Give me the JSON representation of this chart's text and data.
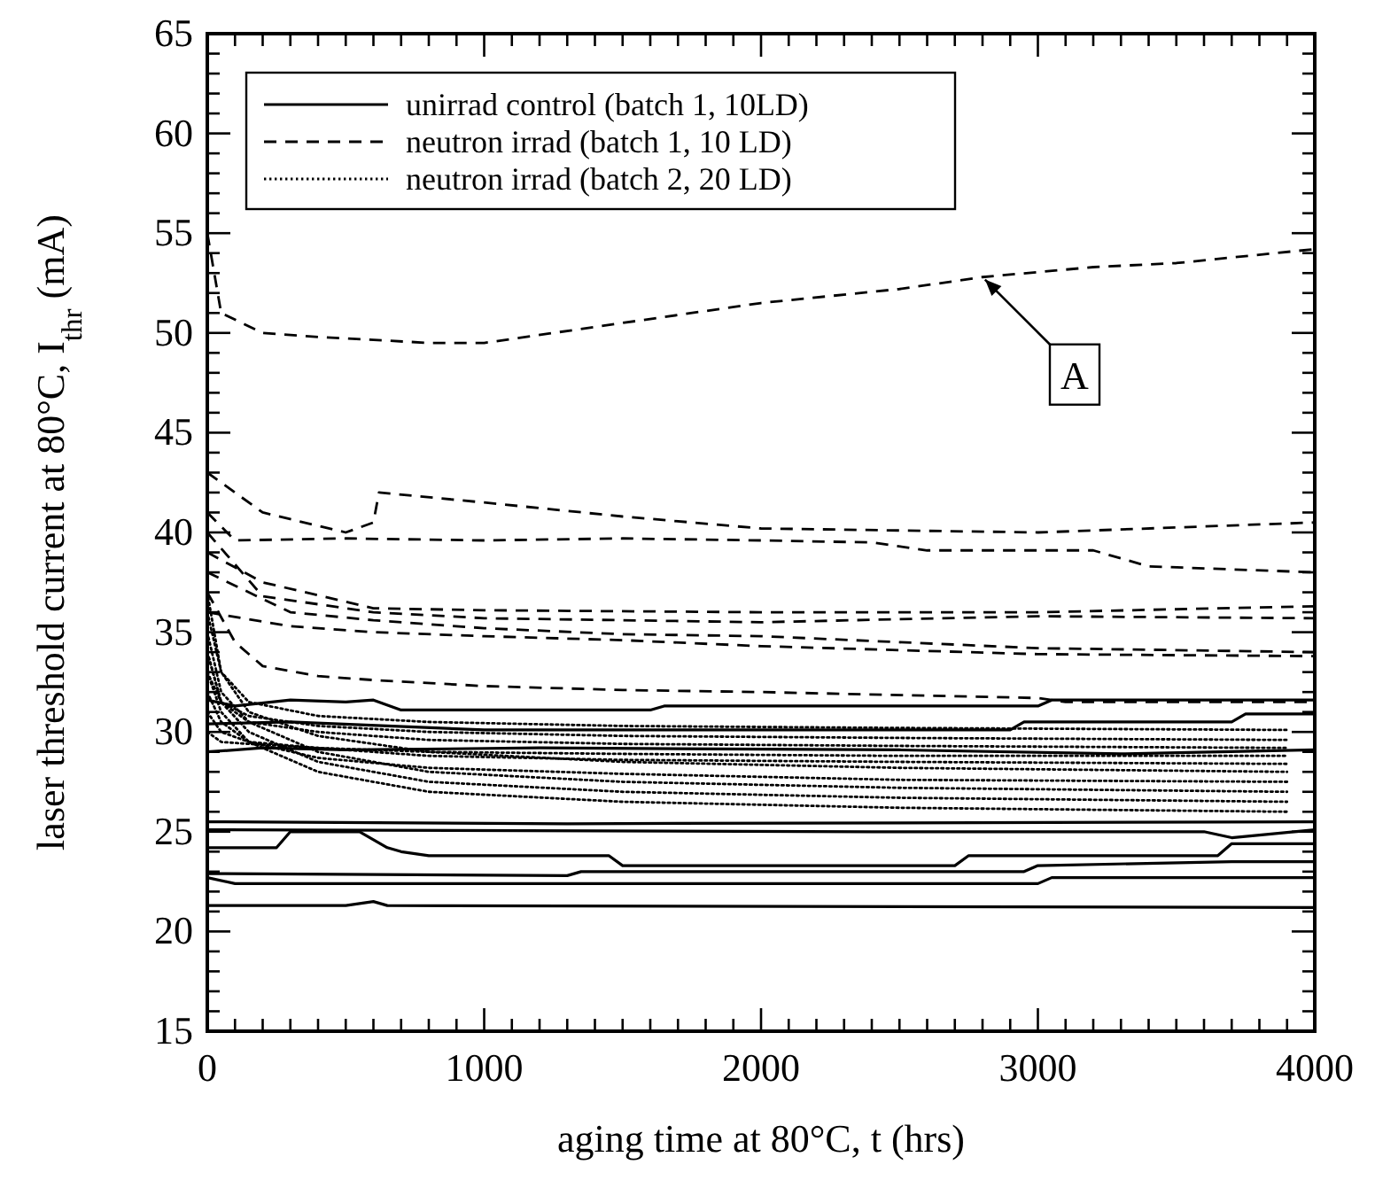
{
  "chart_data": {
    "type": "line",
    "xlabel": "aging time at 80°C, t (hrs)",
    "ylabel": "laser threshold current at 80°C, I$_{thr}$ (mA)",
    "xlim": [
      0,
      4000
    ],
    "ylim": [
      15,
      65
    ],
    "xticks": [
      0,
      {
        "value": 100,
        "label": null
      },
      {
        "value": 200,
        "label": null
      },
      {
        "value": 300,
        "label": null
      },
      {
        "value": 400,
        "label": null
      },
      {
        "value": 500,
        "label": null
      },
      {
        "value": 600,
        "label": null
      },
      {
        "value": 700,
        "label": null
      },
      {
        "value": 800,
        "label": null
      },
      {
        "value": 900,
        "label": null
      },
      1000,
      {
        "value": 1100,
        "label": null
      },
      {
        "value": 1200,
        "label": null
      },
      {
        "value": 1300,
        "label": null
      },
      {
        "value": 1400,
        "label": null
      },
      {
        "value": 1500,
        "label": null
      },
      {
        "value": 1600,
        "label": null
      },
      {
        "value": 1700,
        "label": null
      },
      {
        "value": 1800,
        "label": null
      },
      {
        "value": 1900,
        "label": null
      },
      2000,
      {
        "value": 2100,
        "label": null
      },
      {
        "value": 2200,
        "label": null
      },
      {
        "value": 2300,
        "label": null
      },
      {
        "value": 2400,
        "label": null
      },
      {
        "value": 2500,
        "label": null
      },
      {
        "value": 2600,
        "label": null
      },
      {
        "value": 2700,
        "label": null
      },
      {
        "value": 2800,
        "label": null
      },
      {
        "value": 2900,
        "label": null
      },
      3000,
      {
        "value": 3100,
        "label": null
      },
      {
        "value": 3200,
        "label": null
      },
      {
        "value": 3300,
        "label": null
      },
      {
        "value": 3400,
        "label": null
      },
      {
        "value": 3500,
        "label": null
      },
      {
        "value": 3600,
        "label": null
      },
      {
        "value": 3700,
        "label": null
      },
      {
        "value": 3800,
        "label": null
      },
      {
        "value": 3900,
        "label": null
      },
      4000
    ],
    "yticks": [
      15,
      {
        "value": 16,
        "label": null
      },
      {
        "value": 17,
        "label": null
      },
      {
        "value": 18,
        "label": null
      },
      {
        "value": 19,
        "label": null
      },
      20,
      {
        "value": 21,
        "label": null
      },
      {
        "value": 22,
        "label": null
      },
      {
        "value": 23,
        "label": null
      },
      {
        "value": 24,
        "label": null
      },
      25,
      {
        "value": 26,
        "label": null
      },
      {
        "value": 27,
        "label": null
      },
      {
        "value": 28,
        "label": null
      },
      {
        "value": 29,
        "label": null
      },
      30,
      {
        "value": 31,
        "label": null
      },
      {
        "value": 32,
        "label": null
      },
      {
        "value": 33,
        "label": null
      },
      {
        "value": 34,
        "label": null
      },
      35,
      {
        "value": 36,
        "label": null
      },
      {
        "value": 37,
        "label": null
      },
      {
        "value": 38,
        "label": null
      },
      {
        "value": 39,
        "label": null
      },
      40,
      {
        "value": 41,
        "label": null
      },
      {
        "value": 42,
        "label": null
      },
      {
        "value": 43,
        "label": null
      },
      {
        "value": 44,
        "label": null
      },
      45,
      {
        "value": 46,
        "label": null
      },
      {
        "value": 47,
        "label": null
      },
      {
        "value": 48,
        "label": null
      },
      {
        "value": 49,
        "label": null
      },
      50,
      {
        "value": 51,
        "label": null
      },
      {
        "value": 52,
        "label": null
      },
      {
        "value": 53,
        "label": null
      },
      {
        "value": 54,
        "label": null
      },
      55,
      {
        "value": 56,
        "label": null
      },
      {
        "value": 57,
        "label": null
      },
      {
        "value": 58,
        "label": null
      },
      {
        "value": 59,
        "label": null
      },
      60,
      {
        "value": 61,
        "label": null
      },
      {
        "value": 62,
        "label": null
      },
      {
        "value": 63,
        "label": null
      },
      {
        "value": 64,
        "label": null
      },
      65
    ],
    "grid": false,
    "legend": "top left",
    "marker": "none",
    "annotations": [
      {
        "text": "A",
        "x": 2800,
        "y": 52.8
      }
    ],
    "series": [
      {
        "name": "unirrad control (batch 1, 10LD)",
        "color": "#000000",
        "line_style": "solid",
        "x": [
          0,
          100,
          300,
          500,
          600,
          700,
          1600,
          1650,
          3000,
          3050,
          4000
        ],
        "values": [
          31.6,
          31.3,
          31.6,
          31.5,
          31.6,
          31.1,
          31.1,
          31.3,
          31.3,
          31.6,
          31.6
        ]
      },
      {
        "color": "#000000",
        "line_style": "solid",
        "x": [
          0,
          300,
          1000,
          2900,
          2950,
          3700,
          3750,
          4000
        ],
        "values": [
          30.4,
          30.5,
          30.1,
          30.1,
          30.5,
          30.5,
          30.9,
          30.9
        ]
      },
      {
        "color": "#000000",
        "line_style": "solid",
        "x": [
          0,
          200,
          500,
          1200,
          2500,
          3300,
          4000
        ],
        "values": [
          29.0,
          29.2,
          29.1,
          29.2,
          29.1,
          28.9,
          29.1
        ]
      },
      {
        "color": "#000000",
        "line_style": "solid",
        "x": [
          0,
          1300,
          4000
        ],
        "values": [
          25.5,
          25.4,
          25.5
        ]
      },
      {
        "color": "#000000",
        "line_style": "solid",
        "x": [
          0,
          2400,
          3600,
          3700,
          4000
        ],
        "values": [
          25.1,
          25.0,
          25.0,
          24.7,
          25.1
        ]
      },
      {
        "color": "#000000",
        "line_style": "solid",
        "x": [
          0,
          250,
          300,
          550,
          650,
          700,
          800,
          1450,
          1500,
          2700,
          2750,
          3650,
          3700,
          4000
        ],
        "values": [
          24.2,
          24.2,
          25.0,
          25.0,
          24.2,
          24.0,
          23.8,
          23.8,
          23.3,
          23.3,
          23.8,
          23.8,
          24.4,
          24.4
        ]
      },
      {
        "color": "#000000",
        "line_style": "solid",
        "x": [
          0,
          1300,
          1350,
          2950,
          3000,
          3700,
          4000
        ],
        "values": [
          22.9,
          22.8,
          23.0,
          23.0,
          23.3,
          23.5,
          23.5
        ]
      },
      {
        "color": "#000000",
        "line_style": "solid",
        "x": [
          0,
          100,
          3000,
          3050,
          4000
        ],
        "values": [
          22.7,
          22.4,
          22.4,
          22.7,
          22.7
        ]
      },
      {
        "color": "#000000",
        "line_style": "solid",
        "x": [
          0,
          500,
          600,
          650,
          4000
        ],
        "values": [
          21.3,
          21.3,
          21.5,
          21.3,
          21.2
        ]
      },
      {
        "name": "neutron irrad (batch 1, 10 LD)",
        "color": "#000000",
        "line_style": "dashed",
        "x": [
          0,
          50,
          200,
          400,
          800,
          1000,
          1500,
          2000,
          2500,
          2800,
          3200,
          3500,
          4000
        ],
        "values": [
          55,
          51,
          50,
          49.8,
          49.5,
          49.5,
          50.5,
          51.5,
          52.2,
          52.8,
          53.3,
          53.5,
          54.2
        ]
      },
      {
        "color": "#000000",
        "line_style": "dashed",
        "x": [
          0,
          200,
          500,
          600,
          620,
          1000,
          1500,
          2000,
          3000,
          4000
        ],
        "values": [
          43,
          41,
          40,
          40.5,
          42,
          41.5,
          40.8,
          40.2,
          40.0,
          40.5
        ]
      },
      {
        "color": "#000000",
        "line_style": "dashed",
        "x": [
          0,
          100,
          500,
          1000,
          1500,
          2000,
          2400,
          2600,
          3200,
          3400,
          4000
        ],
        "values": [
          41,
          39.6,
          39.7,
          39.6,
          39.7,
          39.6,
          39.5,
          39.1,
          39.1,
          38.3,
          38.0
        ]
      },
      {
        "color": "#000000",
        "line_style": "dashed",
        "x": [
          0,
          200,
          600,
          1000,
          2000,
          3000,
          4000
        ],
        "values": [
          39,
          37.5,
          36.2,
          36.1,
          36.0,
          36.0,
          36.3
        ]
      },
      {
        "color": "#000000",
        "line_style": "dashed",
        "x": [
          0,
          200,
          600,
          1000,
          2000,
          3000,
          4000
        ],
        "values": [
          40,
          36.8,
          36.0,
          35.7,
          35.5,
          35.8,
          35.7
        ]
      },
      {
        "color": "#000000",
        "line_style": "dashed",
        "x": [
          0,
          300,
          600,
          1000,
          1500,
          2000,
          3000,
          4000
        ],
        "values": [
          38,
          36.0,
          35.6,
          35.2,
          34.9,
          34.8,
          34.2,
          34.0
        ]
      },
      {
        "color": "#000000",
        "line_style": "dashed",
        "x": [
          0,
          300,
          600,
          1000,
          1500,
          2000,
          3000,
          4000
        ],
        "values": [
          36,
          35.3,
          35.0,
          34.8,
          34.6,
          34.3,
          33.9,
          33.8
        ]
      },
      {
        "color": "#000000",
        "line_style": "dashed",
        "x": [
          0,
          100,
          200,
          400,
          600,
          1000,
          1500,
          2000,
          3000,
          3100,
          4000
        ],
        "values": [
          37,
          34.5,
          33.3,
          32.8,
          32.6,
          32.3,
          32.1,
          32.0,
          31.7,
          31.5,
          31.5
        ]
      },
      {
        "name": "neutron irrad (batch 2, 20 LD)",
        "color": "#000000",
        "line_style": "dotted",
        "x": [
          0,
          50,
          150,
          400,
          800,
          1500,
          2500,
          3900
        ],
        "values": [
          33,
          31,
          29.5,
          28,
          27,
          26.5,
          26.2,
          26.0
        ]
      },
      {
        "color": "#000000",
        "line_style": "dotted",
        "x": [
          0,
          50,
          150,
          400,
          800,
          1500,
          2500,
          3900
        ],
        "values": [
          34,
          31.5,
          30,
          28.5,
          27.5,
          27,
          26.7,
          26.5
        ]
      },
      {
        "color": "#000000",
        "line_style": "dotted",
        "x": [
          0,
          50,
          150,
          400,
          800,
          1500,
          2500,
          3900
        ],
        "values": [
          35,
          32,
          30.5,
          29,
          28,
          27.5,
          27.2,
          27.0
        ]
      },
      {
        "color": "#000000",
        "line_style": "dotted",
        "x": [
          0,
          50,
          150,
          400,
          800,
          1500,
          2500,
          3900
        ],
        "values": [
          32,
          30.5,
          29.5,
          28.7,
          28.2,
          27.9,
          27.6,
          27.5
        ]
      },
      {
        "color": "#000000",
        "line_style": "dotted",
        "x": [
          0,
          50,
          150,
          400,
          800,
          1500,
          2500,
          3900
        ],
        "values": [
          36,
          33,
          31,
          29.8,
          29,
          28.5,
          28.2,
          28.0
        ]
      },
      {
        "color": "#000000",
        "line_style": "dotted",
        "x": [
          0,
          50,
          150,
          400,
          800,
          1500,
          2500,
          3900
        ],
        "values": [
          31,
          30,
          29.5,
          29.2,
          28.8,
          28.6,
          28.5,
          28.4
        ]
      },
      {
        "color": "#000000",
        "line_style": "dotted",
        "x": [
          0,
          50,
          150,
          400,
          800,
          1500,
          2500,
          3900
        ],
        "values": [
          30,
          29.5,
          29.4,
          29.2,
          29.0,
          28.9,
          28.8,
          28.8
        ]
      },
      {
        "color": "#000000",
        "line_style": "dotted",
        "x": [
          0,
          50,
          150,
          400,
          800,
          1500,
          2500,
          3900
        ],
        "values": [
          34,
          31.5,
          30.5,
          30,
          29.6,
          29.4,
          29.3,
          29.2
        ]
      },
      {
        "color": "#000000",
        "line_style": "dotted",
        "x": [
          0,
          50,
          150,
          400,
          800,
          1500,
          2500,
          3900
        ],
        "values": [
          33,
          31.5,
          30.8,
          30.3,
          30.0,
          29.8,
          29.7,
          29.6
        ]
      },
      {
        "color": "#000000",
        "line_style": "dotted",
        "x": [
          0,
          50,
          150,
          400,
          800,
          1500,
          2500,
          3900
        ],
        "values": [
          37,
          33,
          31.5,
          30.8,
          30.5,
          30.3,
          30.2,
          30.1
        ]
      }
    ]
  }
}
